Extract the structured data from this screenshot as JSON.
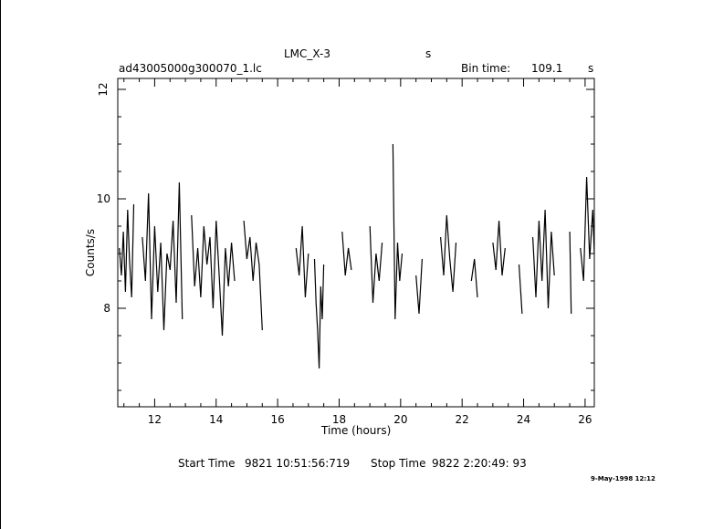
{
  "header": {
    "source": "LMC_X-3",
    "unit": "s",
    "filename": "ad43005000g300070_1.lc",
    "bin_label": "Bin time:",
    "bin_value": "109.1",
    "bin_unit": "s"
  },
  "footer": {
    "start_label": "Start Time",
    "start_value": "9821 10:51:56:719",
    "stop_label": "Stop Time",
    "stop_value": "9822  2:20:49: 93",
    "date_stamp": "9-May-1998 12:12"
  },
  "chart_data": {
    "type": "line",
    "xlabel": "Time (hours)",
    "ylabel": "Counts/s",
    "xlim": [
      10.8,
      26.3
    ],
    "ylim": [
      6.2,
      12.2
    ],
    "x_ticks": [
      12,
      14,
      16,
      18,
      20,
      22,
      24,
      26
    ],
    "y_ticks": [
      8,
      10,
      12
    ],
    "y_ticks_vertical": [
      12
    ],
    "grid": false,
    "segments": [
      {
        "x": [
          10.85,
          10.92,
          10.98,
          11.05,
          11.12,
          11.18,
          11.25,
          11.32
        ],
        "y": [
          9.1,
          8.6,
          9.4,
          8.3,
          9.8,
          8.9,
          8.2,
          9.9
        ]
      },
      {
        "x": [
          11.6,
          11.7,
          11.8,
          11.9,
          12.0,
          12.1,
          12.2,
          12.3,
          12.4,
          12.5,
          12.6,
          12.7,
          12.8,
          12.9
        ],
        "y": [
          9.3,
          8.5,
          10.1,
          7.8,
          9.5,
          8.3,
          9.2,
          7.6,
          9.0,
          8.7,
          9.6,
          8.1,
          10.3,
          7.8
        ]
      },
      {
        "x": [
          13.2,
          13.3,
          13.4,
          13.5,
          13.6,
          13.7,
          13.8,
          13.9,
          14.0,
          14.1,
          14.2,
          14.3,
          14.4,
          14.5,
          14.6
        ],
        "y": [
          9.7,
          8.4,
          9.1,
          8.2,
          9.5,
          8.8,
          9.3,
          8.0,
          9.6,
          8.6,
          7.5,
          9.1,
          8.4,
          9.2,
          8.5
        ]
      },
      {
        "x": [
          14.9,
          15.0,
          15.1,
          15.2,
          15.3,
          15.4,
          15.5
        ],
        "y": [
          9.6,
          8.9,
          9.3,
          8.5,
          9.2,
          8.8,
          7.6
        ]
      },
      {
        "x": [
          16.6,
          16.7,
          16.8,
          16.9,
          17.0
        ],
        "y": [
          9.1,
          8.6,
          9.5,
          8.2,
          9.0
        ]
      },
      {
        "x": [
          17.2,
          17.25,
          17.3,
          17.35,
          17.4,
          17.45,
          17.5
        ],
        "y": [
          8.9,
          8.1,
          7.6,
          6.9,
          8.4,
          7.8,
          8.8
        ]
      },
      {
        "x": [
          18.1,
          18.2,
          18.3,
          18.4
        ],
        "y": [
          9.4,
          8.6,
          9.1,
          8.7
        ]
      },
      {
        "x": [
          19.0,
          19.1,
          19.2,
          19.3,
          19.4
        ],
        "y": [
          9.5,
          8.1,
          9.0,
          8.5,
          9.2
        ]
      },
      {
        "x": [
          19.75,
          19.82,
          19.9,
          19.97,
          20.05
        ],
        "y": [
          11.0,
          7.8,
          9.2,
          8.5,
          9.0
        ]
      },
      {
        "x": [
          20.5,
          20.6,
          20.7
        ],
        "y": [
          8.6,
          7.9,
          8.9
        ]
      },
      {
        "x": [
          21.3,
          21.4,
          21.5,
          21.6,
          21.7,
          21.8
        ],
        "y": [
          9.3,
          8.6,
          9.7,
          8.9,
          8.3,
          9.2
        ]
      },
      {
        "x": [
          22.3,
          22.4,
          22.5
        ],
        "y": [
          8.5,
          8.9,
          8.2
        ]
      },
      {
        "x": [
          23.0,
          23.1,
          23.2,
          23.3,
          23.4
        ],
        "y": [
          9.2,
          8.7,
          9.6,
          8.6,
          9.1
        ]
      },
      {
        "x": [
          23.85,
          23.95
        ],
        "y": [
          8.8,
          7.9
        ]
      },
      {
        "x": [
          24.3,
          24.4,
          24.5,
          24.6,
          24.7,
          24.8,
          24.9,
          25.0
        ],
        "y": [
          9.3,
          8.2,
          9.6,
          8.5,
          9.8,
          8.0,
          9.4,
          8.6
        ]
      },
      {
        "x": [
          25.5,
          25.55
        ],
        "y": [
          9.4,
          7.9
        ]
      },
      {
        "x": [
          25.85,
          25.95,
          26.05,
          26.15,
          26.25,
          26.3
        ],
        "y": [
          9.1,
          8.5,
          10.4,
          8.9,
          9.8,
          9.0
        ]
      }
    ]
  }
}
